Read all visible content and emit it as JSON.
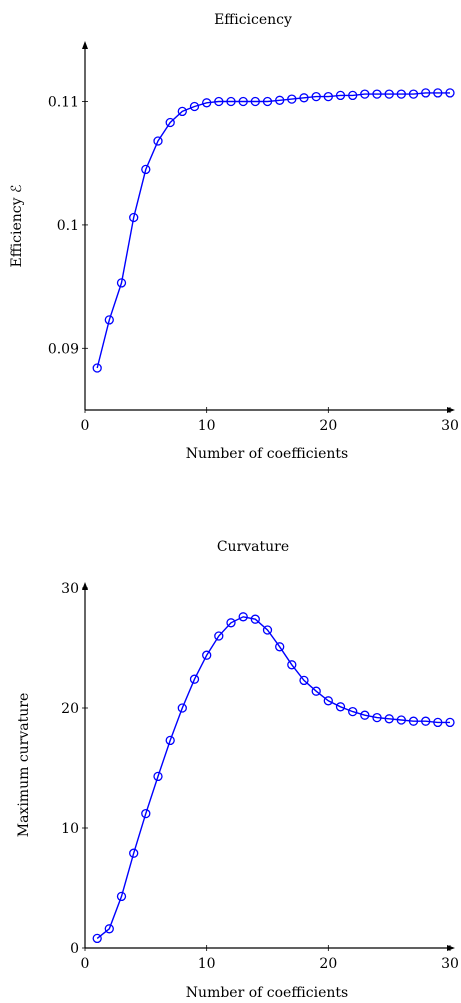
{
  "chart_data": [
    {
      "type": "line",
      "title": "Efficicency",
      "xlabel": "Number of coefficients",
      "ylabel": "Efficiency ℰ",
      "xlim": [
        0,
        30
      ],
      "ylim": [
        0.085,
        0.1145
      ],
      "xticks": [
        0,
        10,
        20,
        30
      ],
      "xtick_labels": [
        "0",
        "10",
        "20",
        "30"
      ],
      "yticks": [
        0.09,
        0.1,
        0.11
      ],
      "ytick_labels": [
        "0.09",
        "0.1",
        "0.11"
      ],
      "grid": false,
      "legend": "none",
      "series_color": "#0000ff",
      "marker": "circle",
      "x": [
        1,
        2,
        3,
        4,
        5,
        6,
        7,
        8,
        9,
        10,
        11,
        12,
        13,
        14,
        15,
        16,
        17,
        18,
        19,
        20,
        21,
        22,
        23,
        24,
        25,
        26,
        27,
        28,
        29,
        30
      ],
      "y": [
        0.0884,
        0.0923,
        0.0953,
        0.1006,
        0.1045,
        0.1068,
        0.1083,
        0.1092,
        0.1096,
        0.1099,
        0.11,
        0.11,
        0.11,
        0.11,
        0.11,
        0.1101,
        0.1102,
        0.1103,
        0.1104,
        0.1104,
        0.1105,
        0.1105,
        0.1106,
        0.1106,
        0.1106,
        0.1106,
        0.1106,
        0.1107,
        0.1107,
        0.1107
      ]
    },
    {
      "type": "line",
      "title": "Curvature",
      "xlabel": "Number of coefficients",
      "ylabel": "Maximum curvature",
      "xlim": [
        0,
        30
      ],
      "ylim": [
        0,
        30
      ],
      "xticks": [
        0,
        10,
        20,
        30
      ],
      "xtick_labels": [
        "0",
        "10",
        "20",
        "30"
      ],
      "yticks": [
        0,
        10,
        20,
        30
      ],
      "ytick_labels": [
        "0",
        "10",
        "20",
        "30"
      ],
      "grid": false,
      "legend": "none",
      "series_color": "#0000ff",
      "marker": "circle",
      "x": [
        1,
        2,
        3,
        4,
        5,
        6,
        7,
        8,
        9,
        10,
        11,
        12,
        13,
        14,
        15,
        16,
        17,
        18,
        19,
        20,
        21,
        22,
        23,
        24,
        25,
        26,
        27,
        28,
        29,
        30
      ],
      "y": [
        0.8,
        1.6,
        4.3,
        7.9,
        11.2,
        14.3,
        17.3,
        20.0,
        22.4,
        24.4,
        26.0,
        27.1,
        27.6,
        27.4,
        26.5,
        25.1,
        23.6,
        22.3,
        21.4,
        20.6,
        20.1,
        19.7,
        19.4,
        19.2,
        19.1,
        19.0,
        18.9,
        18.9,
        18.8,
        18.8
      ]
    }
  ]
}
